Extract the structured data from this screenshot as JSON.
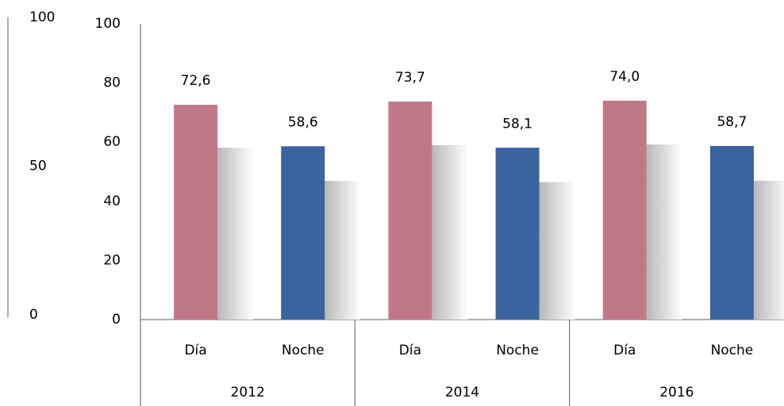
{
  "chart_data": {
    "type": "bar",
    "categories": [
      "Día",
      "Noche",
      "Día",
      "Noche",
      "Día",
      "Noche"
    ],
    "groups": [
      "2012",
      "2014",
      "2016"
    ],
    "values": [
      72.6,
      58.6,
      73.7,
      58.1,
      74.0,
      58.7
    ],
    "value_labels": [
      "72,6",
      "58,6",
      "73,7",
      "58,1",
      "74,0",
      "58,7"
    ],
    "colors": [
      "#c07888",
      "#3a64a0",
      "#c07888",
      "#3a64a0",
      "#c07888",
      "#3a64a0"
    ],
    "ylim": [
      0,
      100
    ],
    "yticks": [
      0,
      20,
      40,
      60,
      80,
      100
    ],
    "y2lim": [
      0,
      100
    ],
    "y2ticks": [
      0,
      50,
      100
    ]
  }
}
